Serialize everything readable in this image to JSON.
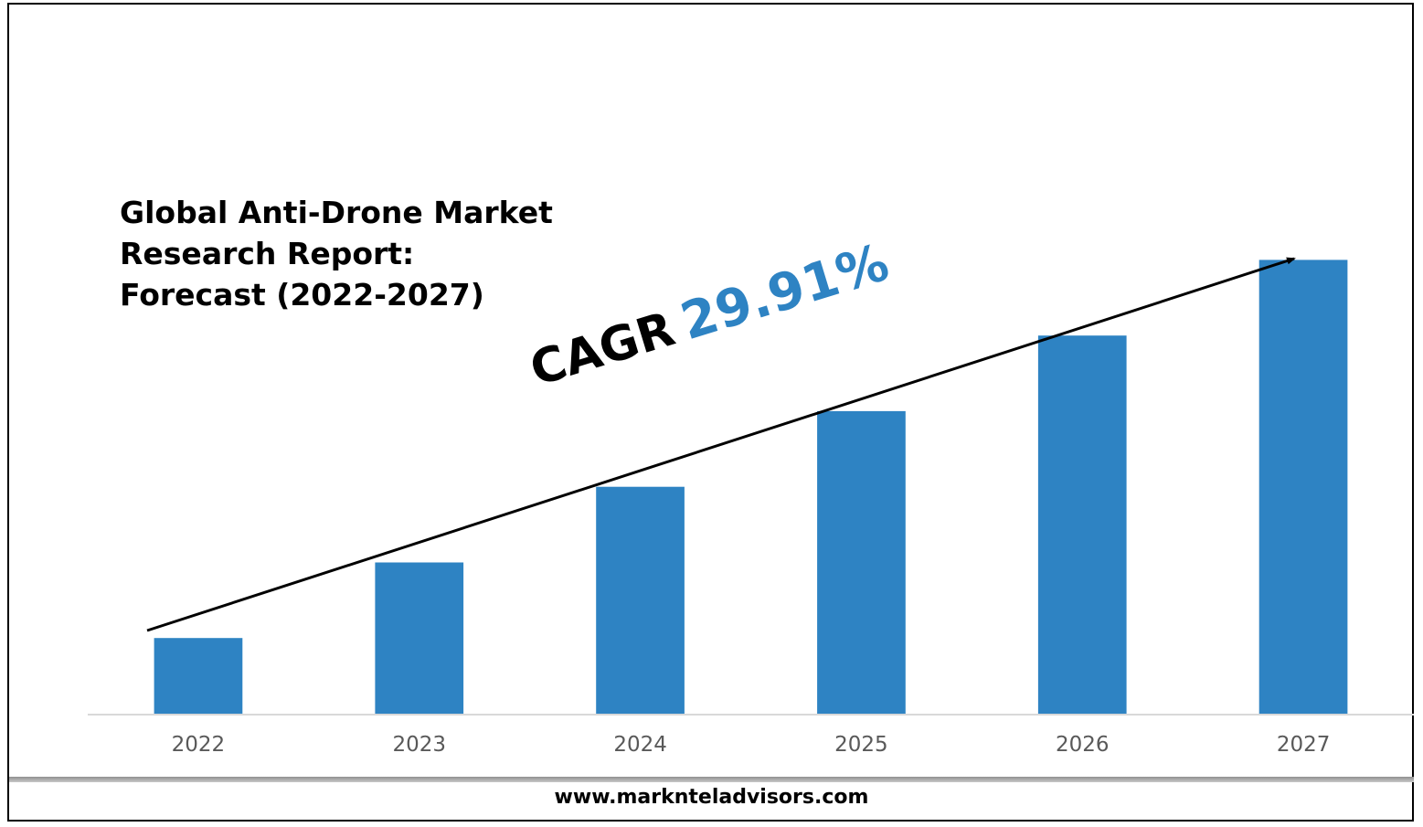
{
  "chart_data": {
    "type": "bar",
    "title": [
      "Global Anti-Drone Market",
      "Research Report:",
      "Forecast (2022-2027)"
    ],
    "categories": [
      "2022",
      "2023",
      "2024",
      "2025",
      "2026",
      "2027"
    ],
    "values": [
      1,
      2,
      3,
      4,
      5,
      6
    ],
    "xlabel": "",
    "ylabel": "",
    "ylim": [
      0,
      6.5
    ],
    "grid": false,
    "legend": "none",
    "annotation": {
      "label": "CAGR",
      "value": "29.91%"
    },
    "colors": {
      "bar": "#2E83C3",
      "annotation_value": "#2E83C3",
      "axis": "#D9D9D9",
      "tick_label": "#595959"
    }
  },
  "footer": {
    "url": "www.marknteladvisors.com"
  }
}
